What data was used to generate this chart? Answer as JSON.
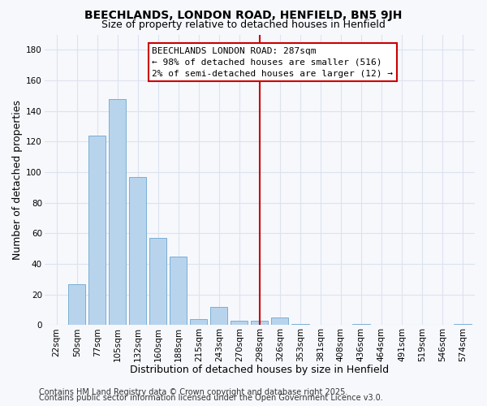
{
  "title": "BEECHLANDS, LONDON ROAD, HENFIELD, BN5 9JH",
  "subtitle": "Size of property relative to detached houses in Henfield",
  "xlabel": "Distribution of detached houses by size in Henfield",
  "ylabel": "Number of detached properties",
  "bar_labels": [
    "22sqm",
    "50sqm",
    "77sqm",
    "105sqm",
    "132sqm",
    "160sqm",
    "188sqm",
    "215sqm",
    "243sqm",
    "270sqm",
    "298sqm",
    "326sqm",
    "353sqm",
    "381sqm",
    "408sqm",
    "436sqm",
    "464sqm",
    "491sqm",
    "519sqm",
    "546sqm",
    "574sqm"
  ],
  "bar_values": [
    0,
    27,
    124,
    148,
    97,
    57,
    45,
    4,
    12,
    3,
    3,
    5,
    1,
    0,
    0,
    1,
    0,
    0,
    0,
    0,
    1
  ],
  "bar_color": "#b8d4ed",
  "bar_edge_color": "#7aafd4",
  "vline_x_index": 10,
  "vline_color": "#cc0000",
  "ylim": [
    0,
    190
  ],
  "yticks": [
    0,
    20,
    40,
    60,
    80,
    100,
    120,
    140,
    160,
    180
  ],
  "annotation_title": "BEECHLANDS LONDON ROAD: 287sqm",
  "annotation_line1": "← 98% of detached houses are smaller (516)",
  "annotation_line2": "2% of semi-detached houses are larger (12) →",
  "footer1": "Contains HM Land Registry data © Crown copyright and database right 2025.",
  "footer2": "Contains public sector information licensed under the Open Government Licence v3.0.",
  "background_color": "#f7f8fc",
  "plot_bg_color": "#f7f8fc",
  "grid_color": "#dce3f0",
  "title_fontsize": 10,
  "subtitle_fontsize": 9,
  "axis_label_fontsize": 9,
  "tick_fontsize": 7.5,
  "annotation_fontsize": 8,
  "footer_fontsize": 7
}
